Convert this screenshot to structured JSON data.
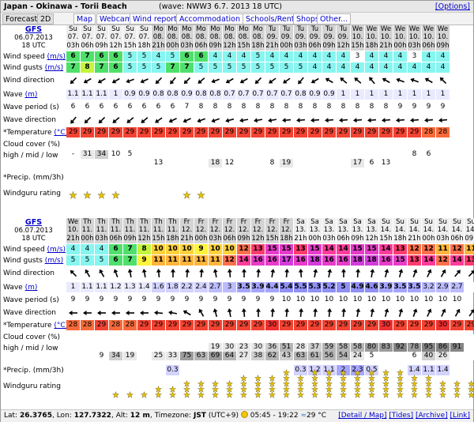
{
  "header": {
    "title": "Japan - Okinawa - Torii Beach",
    "wave_model": "(wave: NWW3 6.7. 2013 18 UTC)",
    "options": "[Options]"
  },
  "tabs": [
    "Forecast",
    "2D",
    "Map",
    "Webcams",
    "Wind reports",
    "Accommodation",
    "Schools/Rentals",
    "Shops",
    "Other..."
  ],
  "labels": {
    "wind_speed": "Wind speed",
    "wind_gusts": "Wind gusts",
    "ms": "(m/s)",
    "wind_direction": "Wind direction",
    "wave": "Wave",
    "m": "(m)",
    "wave_period": "Wave period (s)",
    "wave_direction": "Wave direction",
    "temperature": "*Temperature",
    "degc": "(°C)",
    "cloud": "Cloud cover (%)",
    "cloud2": "high / mid / low",
    "precip": "*Precip. (mm/3h)",
    "rating": "Windguru rating"
  },
  "colors": {
    "ws": {
      "3": "#ffffff",
      "4": "#87f5f0",
      "5": "#87f5f0",
      "6": "#4fe06b",
      "7": "#4fe06b",
      "8": "#c3f53c",
      "9": "#fff33c",
      "10": "#ffd23c",
      "11": "#ffb43c",
      "12": "#ff6e4b",
      "13": "#ff3c6e",
      "14": "#ff3c9b",
      "15": "#e63cc8",
      "16": "#e63cc8",
      "17": "#d23cdc",
      "18": "#d23cdc"
    },
    "temp": {
      "28": "#f86a3a",
      "29": "#f34332",
      "30": "#ef3030"
    },
    "wave": [
      "#eaeaff",
      "#d2d2ff",
      "#bcbcff",
      "#a5a5ff",
      "#9090f5"
    ],
    "cloud": [
      "#ffffff",
      "#e8e8e8",
      "#cfcfcf",
      "#b5b5b5",
      "#9c9c9c",
      "#858585"
    ]
  },
  "block1": {
    "model": "GFS",
    "date": "06.07.2013",
    "utc": "18 UTC",
    "days": [
      "Su",
      "Su",
      "Su",
      "Su",
      "Su",
      "Su",
      "Mo",
      "Mo",
      "Mo",
      "Mo",
      "Mo",
      "Mo",
      "Mo",
      "Mo",
      "Tu",
      "Tu",
      "Tu",
      "Tu",
      "Tu",
      "Tu",
      "We",
      "We",
      "We",
      "We",
      "We",
      "We",
      "We"
    ],
    "dates": [
      "07.",
      "07.",
      "07.",
      "07.",
      "07.",
      "07.",
      "08.",
      "08.",
      "08.",
      "08.",
      "08.",
      "08.",
      "08.",
      "08.",
      "09.",
      "09.",
      "09.",
      "09.",
      "09.",
      "09.",
      "10.",
      "10.",
      "10.",
      "10.",
      "10.",
      "10.",
      "10."
    ],
    "hours": [
      "03h",
      "06h",
      "09h",
      "12h",
      "15h",
      "18h",
      "21h",
      "00h",
      "03h",
      "06h",
      "09h",
      "12h",
      "15h",
      "18h",
      "21h",
      "00h",
      "03h",
      "06h",
      "09h",
      "12h",
      "15h",
      "18h",
      "21h",
      "00h",
      "03h",
      "06h",
      "09h"
    ],
    "wind_speed": [
      6,
      7,
      6,
      6,
      5,
      5,
      4,
      5,
      6,
      6,
      4,
      4,
      4,
      5,
      4,
      4,
      4,
      4,
      4,
      4,
      3,
      4,
      4,
      4,
      3,
      4,
      4
    ],
    "wind_gusts": [
      7,
      8,
      7,
      6,
      5,
      5,
      5,
      7,
      7,
      5,
      5,
      5,
      5,
      5,
      5,
      5,
      5,
      4,
      4,
      4,
      4,
      4,
      4,
      4,
      4,
      4,
      4
    ],
    "wind_dir": [
      225,
      240,
      240,
      240,
      250,
      245,
      225,
      220,
      225,
      230,
      250,
      240,
      240,
      225,
      235,
      235,
      220,
      240,
      300,
      310,
      310,
      320,
      300,
      290,
      290,
      300,
      315
    ],
    "wave": [
      "1.1",
      "1.1",
      "1.1",
      "1",
      "0.9",
      "0.9",
      "0.8",
      "0.8",
      "0.9",
      "0.8",
      "0.8",
      "0.7",
      "0.7",
      "0.7",
      "0.7",
      "0.7",
      "0.8",
      "0.9",
      "0.9",
      "1",
      "1",
      "1",
      "1",
      "1",
      "1",
      "1",
      "1"
    ],
    "wave_period": [
      "6",
      "6",
      "6",
      "6",
      "6",
      "6",
      "6",
      "6",
      "7",
      "8",
      "8",
      "8",
      "8",
      "8",
      "8",
      "8",
      "8",
      "8",
      "8",
      "8",
      "8",
      "8",
      "8",
      "9",
      "9",
      "9",
      "9"
    ],
    "wave_dir": [
      220,
      225,
      225,
      230,
      230,
      230,
      235,
      245,
      245,
      250,
      250,
      255,
      260,
      260,
      260,
      265,
      265,
      265,
      265,
      265,
      265,
      265,
      265,
      265,
      265,
      265,
      265
    ],
    "temp": [
      29,
      29,
      29,
      29,
      29,
      29,
      29,
      29,
      29,
      29,
      29,
      29,
      29,
      29,
      29,
      29,
      29,
      29,
      29,
      29,
      29,
      29,
      29,
      29,
      29,
      28,
      28
    ],
    "cloud_high": [
      "",
      "",
      "",
      "",
      "",
      "",
      "",
      "",
      "",
      "",
      "",
      "",
      "",
      "",
      "",
      "",
      "",
      "",
      "",
      "",
      "",
      "",
      "",
      "",
      "",
      "",
      ""
    ],
    "cloud_mid": [
      "-",
      "31",
      "34",
      "10",
      "5",
      "",
      "",
      "",
      "",
      "",
      "",
      "",
      "",
      "",
      "",
      "",
      "",
      "",
      "",
      "",
      "",
      "",
      "",
      "",
      "8",
      "6",
      ""
    ],
    "cloud_low": [
      "",
      "",
      "",
      "",
      "",
      "",
      "13",
      "",
      "",
      "",
      "18",
      "12",
      "",
      "",
      "8",
      "19",
      "",
      "",
      "",
      "",
      "17",
      "6",
      "13",
      "",
      "",
      "",
      ""
    ],
    "precip": [
      "",
      "",
      "",
      "",
      "",
      "",
      "",
      "",
      "",
      "",
      "",
      "",
      "",
      "",
      "",
      "",
      "",
      "",
      "",
      "",
      "",
      "",
      "",
      "",
      "",
      "",
      ""
    ],
    "rating": [
      1,
      1,
      1,
      1,
      0,
      0,
      0,
      0,
      1,
      1,
      0,
      0,
      0,
      0,
      0,
      0,
      0,
      0,
      0,
      0,
      0,
      0,
      0,
      0,
      0,
      0,
      0
    ]
  },
  "block2": {
    "model": "GFS",
    "date": "06.07.2013",
    "utc": "18 UTC",
    "days": [
      "We",
      "Th",
      "Th",
      "Th",
      "Th",
      "Th",
      "Th",
      "Th",
      "Fr",
      "Fr",
      "Fr",
      "Fr",
      "Fr",
      "Fr",
      "Fr",
      "Fr",
      "Sa",
      "Sa",
      "Sa",
      "Sa",
      "Sa",
      "Sa",
      "Su",
      "Su",
      "Su",
      "Su",
      "Su",
      "Su",
      "Su"
    ],
    "dates": [
      "10.",
      "11.",
      "11.",
      "11.",
      "11.",
      "11.",
      "11.",
      "11.",
      "12.",
      "12.",
      "12.",
      "12.",
      "12.",
      "12.",
      "12.",
      "12.",
      "13.",
      "13.",
      "13.",
      "13.",
      "13.",
      "13.",
      "14.",
      "14.",
      "14.",
      "14.",
      "14.",
      "14.",
      "14."
    ],
    "hours": [
      "21h",
      "00h",
      "03h",
      "06h",
      "09h",
      "12h",
      "15h",
      "18h",
      "21h",
      "00h",
      "03h",
      "06h",
      "09h",
      "12h",
      "15h",
      "18h",
      "21h",
      "00h",
      "03h",
      "06h",
      "09h",
      "12h",
      "15h",
      "18h",
      "21h",
      "00h",
      "03h",
      "06h",
      "09h"
    ],
    "wind_speed": [
      4,
      4,
      4,
      6,
      7,
      8,
      10,
      10,
      10,
      9,
      10,
      10,
      12,
      13,
      15,
      15,
      13,
      15,
      14,
      14,
      15,
      15,
      14,
      13,
      12,
      12,
      11,
      12,
      11
    ],
    "wind_gusts": [
      5,
      5,
      5,
      6,
      7,
      9,
      11,
      11,
      11,
      11,
      11,
      12,
      14,
      16,
      16,
      17,
      16,
      18,
      16,
      16,
      18,
      18,
      16,
      15,
      13,
      14,
      12,
      14,
      13
    ],
    "wind_dir": [
      315,
      330,
      330,
      340,
      350,
      350,
      355,
      0,
      5,
      5,
      350,
      355,
      0,
      5,
      10,
      5,
      355,
      10,
      10,
      0,
      5,
      10,
      15,
      15,
      20,
      25,
      30,
      40,
      45
    ],
    "wave": [
      "1",
      "1.1",
      "1.1",
      "1.2",
      "1.3",
      "1.4",
      "1.6",
      "1.8",
      "2.2",
      "2.4",
      "2.7",
      "3",
      "3.5",
      "3.9",
      "4.4",
      "5.4",
      "5.5",
      "5.3",
      "5.2",
      "5",
      "4.9",
      "4.6",
      "3.9",
      "3.5",
      "3.5",
      "3.2",
      "2.9",
      "2.7",
      ""
    ],
    "wave_period": [
      "9",
      "9",
      "9",
      "9",
      "9",
      "9",
      "9",
      "9",
      "9",
      "9",
      "9",
      "9",
      "9",
      "9",
      "9",
      "10",
      "10",
      "10",
      "10",
      "10",
      "10",
      "10",
      "10",
      "10",
      "10",
      "10",
      "10",
      "10",
      ""
    ],
    "wave_dir": [
      270,
      270,
      270,
      270,
      270,
      270,
      275,
      280,
      300,
      330,
      345,
      350,
      355,
      0,
      5,
      5,
      5,
      5,
      5,
      5,
      10,
      10,
      15,
      15,
      20,
      25,
      25,
      30,
      35
    ],
    "temp": [
      28,
      28,
      29,
      28,
      28,
      29,
      29,
      29,
      29,
      29,
      29,
      29,
      29,
      29,
      30,
      29,
      29,
      29,
      29,
      29,
      29,
      29,
      30,
      29,
      29,
      29,
      30,
      29,
      29
    ],
    "cloud_high": [
      "",
      "",
      "",
      "",
      "",
      "",
      "",
      "",
      "",
      "",
      "",
      "",
      "",
      "",
      "",
      "",
      "",
      "",
      "",
      "",
      "",
      "",
      "",
      "",
      "",
      "",
      "",
      "",
      ""
    ],
    "cloud_mid": [
      "",
      "",
      "",
      "",
      "",
      "",
      "",
      "",
      "",
      "",
      "19",
      "30",
      "23",
      "30",
      "36",
      "51",
      "28",
      "37",
      "59",
      "58",
      "58",
      "80",
      "83",
      "92",
      "78",
      "95",
      "86",
      "91",
      ""
    ],
    "cloud_low": [
      "",
      "",
      "9",
      "34",
      "19",
      "",
      "25",
      "33",
      "75",
      "63",
      "69",
      "64",
      "27",
      "38",
      "62",
      "43",
      "63",
      "61",
      "56",
      "54",
      "24",
      "5",
      "",
      "",
      "6",
      "40",
      "26",
      "",
      ""
    ],
    "precip": [
      "",
      "",
      "",
      "",
      "",
      "",
      "",
      "0.3",
      "",
      "",
      "",
      "",
      "",
      "",
      "",
      "",
      "0.3",
      "1.2",
      "1.1",
      "2",
      "2.3",
      "0.5",
      "",
      "",
      "1.4",
      "1.1",
      "1.4",
      "",
      ""
    ],
    "rating": [
      0,
      0,
      0,
      1,
      1,
      1,
      2,
      2,
      3,
      3,
      3,
      3,
      4,
      4,
      4,
      5,
      4,
      5,
      5,
      5,
      5,
      5,
      5,
      5,
      4,
      4,
      3,
      3,
      3
    ]
  },
  "footer": {
    "lat_label": "Lat:",
    "lat": "26.3765",
    "lon_label": "Lon:",
    "lon": "127.7322",
    "alt_label": "Alt:",
    "alt": "12 m",
    "tz_label": "Timezone:",
    "tz": "JST",
    "tz_off": "(UTC+9)",
    "sun": "05:45 - 19:22",
    "water": "29 °C",
    "links": [
      "[Detail / Map]",
      "[Tides]",
      "[Archive]",
      "[Link]"
    ]
  }
}
